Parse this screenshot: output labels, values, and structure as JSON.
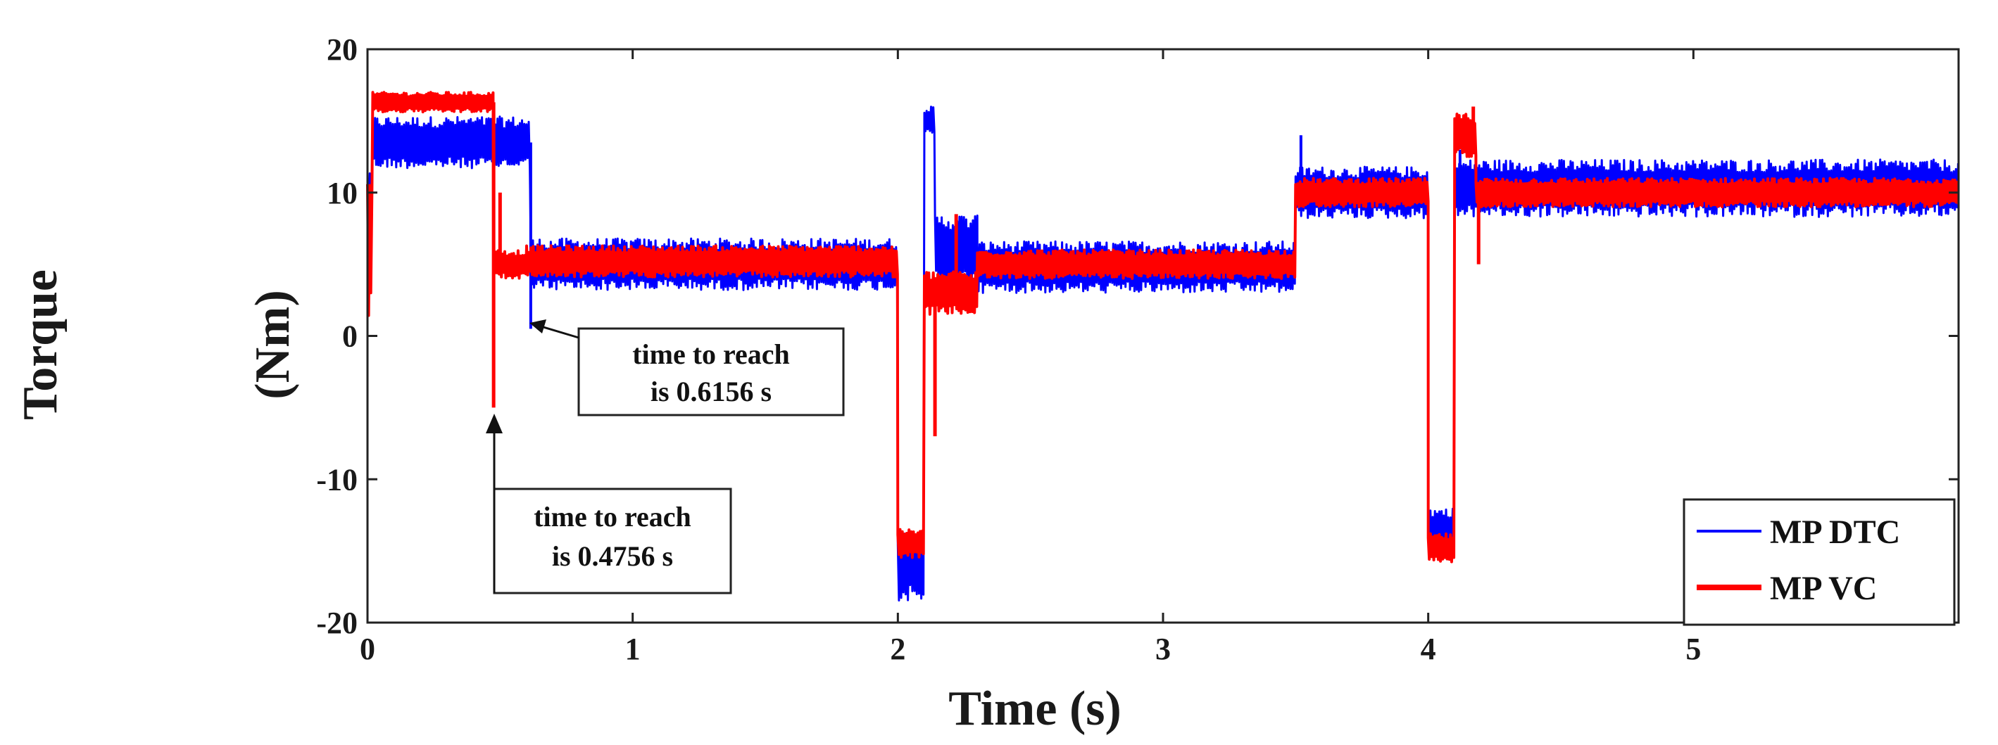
{
  "chart_data": {
    "type": "line",
    "title": "",
    "xlabel": "Time (s)",
    "ylabel_outer": "Torque",
    "ylabel_inner": "(Nm)",
    "xlim": [
      0,
      6
    ],
    "ylim": [
      -20,
      20
    ],
    "xticks": [
      0,
      1,
      2,
      3,
      4,
      5
    ],
    "xtick_labels": [
      "0",
      "1",
      "2",
      "3",
      "4",
      "5"
    ],
    "yticks": [
      20,
      10,
      0,
      -10,
      -20
    ],
    "ytick_labels": [
      "20",
      "10",
      "0",
      "-10",
      "-20"
    ],
    "grid": false,
    "legend_position": "bottom-right",
    "series": [
      {
        "name": "MP DTC",
        "color": "#0000ff",
        "segments": [
          {
            "t0": 0.0,
            "t1": 0.02,
            "mean": 8.0,
            "ripple": 4.0
          },
          {
            "t0": 0.02,
            "t1": 0.6156,
            "mean": 13.5,
            "ripple": 1.8
          },
          {
            "t0": 0.6156,
            "t1": 2.0,
            "mean": 5.0,
            "ripple": 1.8
          },
          {
            "t0": 2.0,
            "t1": 2.1,
            "mean": -16.0,
            "ripple": 2.5
          },
          {
            "t0": 2.1,
            "t1": 2.14,
            "mean": 15.0,
            "ripple": 1.0
          },
          {
            "t0": 2.14,
            "t1": 2.3,
            "mean": 6.0,
            "ripple": 2.5
          },
          {
            "t0": 2.3,
            "t1": 3.5,
            "mean": 4.8,
            "ripple": 1.8
          },
          {
            "t0": 3.5,
            "t1": 4.0,
            "mean": 10.0,
            "ripple": 1.8
          },
          {
            "t0": 4.0,
            "t1": 4.1,
            "mean": -13.5,
            "ripple": 1.5
          },
          {
            "t0": 4.1,
            "t1": 6.0,
            "mean": 10.3,
            "ripple": 2.0
          }
        ],
        "events": [
          {
            "t": 0.6156,
            "value": 0.5
          },
          {
            "t": 2.13,
            "value": 16.0
          },
          {
            "t": 3.52,
            "value": 14.0
          },
          {
            "t": 4.12,
            "value": 13.0
          }
        ]
      },
      {
        "name": "MP VC",
        "color": "#ff0000",
        "segments": [
          {
            "t0": 0.0,
            "t1": 0.02,
            "mean": 6.0,
            "ripple": 5.0
          },
          {
            "t0": 0.02,
            "t1": 0.4756,
            "mean": 16.3,
            "ripple": 0.7
          },
          {
            "t0": 0.4756,
            "t1": 0.6,
            "mean": 5.0,
            "ripple": 1.0
          },
          {
            "t0": 0.6,
            "t1": 2.0,
            "mean": 5.2,
            "ripple": 1.1
          },
          {
            "t0": 2.0,
            "t1": 2.1,
            "mean": -14.5,
            "ripple": 1.0
          },
          {
            "t0": 2.1,
            "t1": 2.3,
            "mean": 3.0,
            "ripple": 1.5
          },
          {
            "t0": 2.3,
            "t1": 3.5,
            "mean": 5.0,
            "ripple": 1.0
          },
          {
            "t0": 3.5,
            "t1": 4.0,
            "mean": 10.0,
            "ripple": 1.0
          },
          {
            "t0": 4.0,
            "t1": 4.1,
            "mean": -14.8,
            "ripple": 1.0
          },
          {
            "t0": 4.1,
            "t1": 4.18,
            "mean": 14.0,
            "ripple": 1.5
          },
          {
            "t0": 4.18,
            "t1": 6.0,
            "mean": 10.0,
            "ripple": 1.0
          }
        ],
        "events": [
          {
            "t": 0.4756,
            "value": -5.0
          },
          {
            "t": 0.5,
            "value": 10.0
          },
          {
            "t": 2.14,
            "value": -7.0
          },
          {
            "t": 2.22,
            "value": 8.5
          },
          {
            "t": 4.17,
            "value": 16.0
          },
          {
            "t": 4.19,
            "value": 5.0
          }
        ]
      }
    ],
    "annotations": [
      {
        "id": "dtc-reach",
        "line1": "time to reach",
        "line2": "is 0.6156 s",
        "arrow_to": [
          0.6156,
          1.0
        ]
      },
      {
        "id": "vc-reach",
        "line1": "time to reach",
        "line2": "is 0.4756 s",
        "arrow_to": [
          0.4756,
          -5.0
        ]
      }
    ]
  }
}
